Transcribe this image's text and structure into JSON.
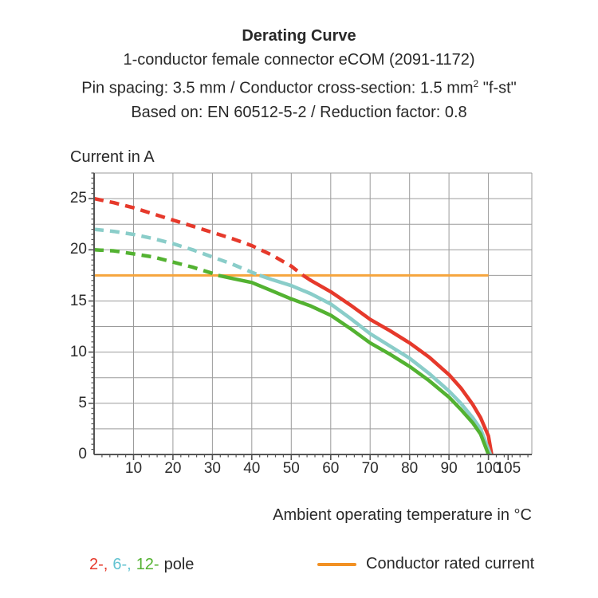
{
  "header": {
    "title": "Derating Curve",
    "line2": "1-conductor female connector eCOM (2091-1172)",
    "line3": {
      "text": "Pin spacing: 3.5 mm / Conductor cross-section: 1.5 mm",
      "sup": "2",
      "rest": " \"f-st\""
    },
    "line4": "Based on: EN 60512-5-2 / Reduction factor: 0.8"
  },
  "chart": {
    "y_axis_title": "Current in A",
    "x_axis_title": "Ambient operating temperature in °C"
  },
  "legend": {
    "poles": [
      {
        "label": "2-,",
        "color": "#e6392b"
      },
      {
        "label": "6-,",
        "color": "#63c3d1"
      },
      {
        "label": "12-",
        "color": "#53b231"
      }
    ],
    "poles_suffix": "pole",
    "rated_label": "Conductor rated current",
    "rated_color": "#f29123"
  },
  "chart_data": {
    "type": "line",
    "title": "Derating Curve",
    "xlabel": "Ambient operating temperature in °C",
    "ylabel": "Current in A",
    "xlim": [
      0,
      111
    ],
    "ylim": [
      0,
      27.5
    ],
    "x_major_ticks": [
      10,
      20,
      30,
      40,
      50,
      60,
      70,
      80,
      90,
      100,
      105
    ],
    "x_gridlines": [
      10,
      20,
      30,
      40,
      50,
      60,
      70,
      80,
      90,
      100
    ],
    "x_minor_step": 2,
    "y_major_ticks": [
      0,
      5,
      10,
      15,
      20,
      25
    ],
    "y_gridline_step": 2.5,
    "y_minor_step": 0.5,
    "grid_on": true,
    "grid_color": "#9b9b9b",
    "axis_color": "#555555",
    "rated_current": 17.5,
    "rated_current_span": [
      0,
      100
    ],
    "rated_color": "#f6a53d",
    "legend_position": "bottom",
    "series": [
      {
        "name": "2-pole",
        "color": "#e6392b",
        "dashed_until": 53,
        "points": [
          [
            0,
            25.0
          ],
          [
            5,
            24.6
          ],
          [
            10,
            24.1
          ],
          [
            15,
            23.5
          ],
          [
            20,
            22.9
          ],
          [
            25,
            22.3
          ],
          [
            30,
            21.7
          ],
          [
            35,
            21.1
          ],
          [
            40,
            20.4
          ],
          [
            45,
            19.5
          ],
          [
            50,
            18.4
          ],
          [
            53,
            17.5
          ],
          [
            55,
            17.0
          ],
          [
            60,
            15.9
          ],
          [
            65,
            14.6
          ],
          [
            70,
            13.2
          ],
          [
            75,
            12.1
          ],
          [
            80,
            10.9
          ],
          [
            85,
            9.5
          ],
          [
            90,
            7.8
          ],
          [
            93,
            6.5
          ],
          [
            96,
            4.9
          ],
          [
            98,
            3.6
          ],
          [
            100,
            1.8
          ],
          [
            100.8,
            0
          ]
        ]
      },
      {
        "name": "6-pole",
        "color": "#8acdc9",
        "dashed_until": 42,
        "points": [
          [
            0,
            22.0
          ],
          [
            5,
            21.8
          ],
          [
            10,
            21.5
          ],
          [
            15,
            21.1
          ],
          [
            20,
            20.6
          ],
          [
            25,
            20.0
          ],
          [
            30,
            19.3
          ],
          [
            35,
            18.6
          ],
          [
            40,
            17.8
          ],
          [
            42,
            17.5
          ],
          [
            45,
            17.1
          ],
          [
            50,
            16.5
          ],
          [
            55,
            15.7
          ],
          [
            60,
            14.7
          ],
          [
            65,
            13.3
          ],
          [
            70,
            11.8
          ],
          [
            75,
            10.6
          ],
          [
            80,
            9.4
          ],
          [
            85,
            7.9
          ],
          [
            90,
            6.2
          ],
          [
            93,
            5.0
          ],
          [
            96,
            3.6
          ],
          [
            98,
            2.5
          ],
          [
            100.5,
            0
          ]
        ]
      },
      {
        "name": "12-pole",
        "color": "#53b231",
        "dashed_until": 31.5,
        "points": [
          [
            0,
            20.0
          ],
          [
            5,
            19.9
          ],
          [
            10,
            19.6
          ],
          [
            15,
            19.3
          ],
          [
            20,
            18.8
          ],
          [
            25,
            18.3
          ],
          [
            30,
            17.7
          ],
          [
            31.5,
            17.5
          ],
          [
            35,
            17.2
          ],
          [
            40,
            16.8
          ],
          [
            45,
            16.0
          ],
          [
            50,
            15.2
          ],
          [
            55,
            14.5
          ],
          [
            60,
            13.6
          ],
          [
            65,
            12.3
          ],
          [
            70,
            10.9
          ],
          [
            75,
            9.8
          ],
          [
            80,
            8.6
          ],
          [
            85,
            7.2
          ],
          [
            90,
            5.6
          ],
          [
            93,
            4.4
          ],
          [
            96,
            3.1
          ],
          [
            98,
            2.0
          ],
          [
            100,
            0
          ]
        ]
      }
    ]
  }
}
